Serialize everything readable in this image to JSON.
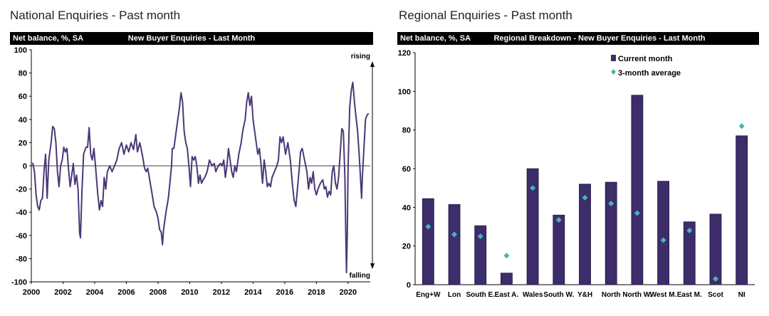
{
  "left_panel": {
    "title": "National Enquiries - Past month",
    "header_left": "Net balance, %, SA",
    "header_center": "New Buyer Enquiries - Last Month"
  },
  "right_panel": {
    "title": "Regional Enquiries - Past month",
    "header_left": "Net balance, %, SA",
    "header_center": "Regional Breakdown - New Buyer Enquiries - Last Month"
  },
  "colors": {
    "series": "#4a3877",
    "bar": "#3d2d6b",
    "marker": "#4ab3b3",
    "zero_line": "#000000"
  },
  "chart_data": [
    {
      "type": "line",
      "title": "New Buyer Enquiries - Last Month",
      "ylabel": "Net balance, %, SA",
      "ylim": [
        -100,
        100
      ],
      "xlim": [
        2000,
        2021.4
      ],
      "yticks": [
        "100",
        "80",
        "60",
        "40",
        "20",
        "0",
        "-20",
        "-40",
        "-60",
        "-80",
        "-100"
      ],
      "xticks": [
        "2000",
        "2002",
        "2004",
        "2006",
        "2008",
        "2010",
        "2012",
        "2014",
        "2016",
        "2018",
        "2020"
      ],
      "annotations": {
        "top": "rising",
        "bottom": "falling"
      },
      "points": [
        [
          2000.0,
          2
        ],
        [
          2000.1,
          2
        ],
        [
          2000.2,
          -5
        ],
        [
          2000.3,
          -25
        ],
        [
          2000.4,
          -35
        ],
        [
          2000.5,
          -38
        ],
        [
          2000.6,
          -30
        ],
        [
          2000.7,
          -28
        ],
        [
          2000.8,
          -5
        ],
        [
          2000.9,
          10
        ],
        [
          2001.0,
          -28
        ],
        [
          2001.1,
          5
        ],
        [
          2001.25,
          20
        ],
        [
          2001.35,
          34
        ],
        [
          2001.45,
          32
        ],
        [
          2001.55,
          20
        ],
        [
          2001.65,
          -5
        ],
        [
          2001.75,
          -18
        ],
        [
          2001.85,
          0
        ],
        [
          2001.95,
          5
        ],
        [
          2002.05,
          16
        ],
        [
          2002.15,
          12
        ],
        [
          2002.25,
          15
        ],
        [
          2002.35,
          -3
        ],
        [
          2002.45,
          -18
        ],
        [
          2002.55,
          -8
        ],
        [
          2002.65,
          2
        ],
        [
          2002.75,
          -16
        ],
        [
          2002.85,
          -8
        ],
        [
          2002.95,
          -20
        ],
        [
          2003.05,
          -58
        ],
        [
          2003.1,
          -62
        ],
        [
          2003.2,
          -20
        ],
        [
          2003.3,
          10
        ],
        [
          2003.45,
          16
        ],
        [
          2003.55,
          16
        ],
        [
          2003.65,
          33
        ],
        [
          2003.75,
          10
        ],
        [
          2003.85,
          5
        ],
        [
          2003.95,
          15
        ],
        [
          2004.05,
          0
        ],
        [
          2004.2,
          -25
        ],
        [
          2004.3,
          -38
        ],
        [
          2004.4,
          -30
        ],
        [
          2004.5,
          -35
        ],
        [
          2004.6,
          -10
        ],
        [
          2004.7,
          -20
        ],
        [
          2004.8,
          -5
        ],
        [
          2004.95,
          0
        ],
        [
          2005.1,
          -5
        ],
        [
          2005.25,
          0
        ],
        [
          2005.4,
          5
        ],
        [
          2005.55,
          15
        ],
        [
          2005.7,
          20
        ],
        [
          2005.85,
          10
        ],
        [
          2006.0,
          18
        ],
        [
          2006.15,
          12
        ],
        [
          2006.3,
          20
        ],
        [
          2006.45,
          14
        ],
        [
          2006.6,
          27
        ],
        [
          2006.7,
          12
        ],
        [
          2006.85,
          20
        ],
        [
          2007.0,
          10
        ],
        [
          2007.15,
          -2
        ],
        [
          2007.25,
          -5
        ],
        [
          2007.35,
          -2
        ],
        [
          2007.45,
          -10
        ],
        [
          2007.6,
          -22
        ],
        [
          2007.75,
          -35
        ],
        [
          2007.9,
          -40
        ],
        [
          2008.0,
          -45
        ],
        [
          2008.1,
          -55
        ],
        [
          2008.2,
          -57
        ],
        [
          2008.28,
          -68
        ],
        [
          2008.35,
          -55
        ],
        [
          2008.5,
          -40
        ],
        [
          2008.65,
          -28
        ],
        [
          2008.75,
          -15
        ],
        [
          2008.85,
          0
        ],
        [
          2008.9,
          15
        ],
        [
          2009.0,
          15
        ],
        [
          2009.1,
          25
        ],
        [
          2009.25,
          40
        ],
        [
          2009.35,
          50
        ],
        [
          2009.45,
          63
        ],
        [
          2009.55,
          55
        ],
        [
          2009.65,
          30
        ],
        [
          2009.75,
          20
        ],
        [
          2009.85,
          15
        ],
        [
          2009.95,
          0
        ],
        [
          2010.05,
          -18
        ],
        [
          2010.15,
          8
        ],
        [
          2010.25,
          5
        ],
        [
          2010.35,
          8
        ],
        [
          2010.45,
          0
        ],
        [
          2010.55,
          -15
        ],
        [
          2010.65,
          -8
        ],
        [
          2010.75,
          -15
        ],
        [
          2010.85,
          -12
        ],
        [
          2010.95,
          -10
        ],
        [
          2011.1,
          -5
        ],
        [
          2011.25,
          5
        ],
        [
          2011.4,
          0
        ],
        [
          2011.55,
          2
        ],
        [
          2011.65,
          -5
        ],
        [
          2011.8,
          0
        ],
        [
          2011.95,
          2
        ],
        [
          2012.05,
          0
        ],
        [
          2012.15,
          5
        ],
        [
          2012.25,
          -10
        ],
        [
          2012.35,
          0
        ],
        [
          2012.45,
          15
        ],
        [
          2012.55,
          5
        ],
        [
          2012.65,
          -5
        ],
        [
          2012.75,
          -10
        ],
        [
          2012.85,
          0
        ],
        [
          2012.95,
          -5
        ],
        [
          2013.1,
          10
        ],
        [
          2013.25,
          20
        ],
        [
          2013.35,
          30
        ],
        [
          2013.5,
          40
        ],
        [
          2013.6,
          55
        ],
        [
          2013.7,
          63
        ],
        [
          2013.8,
          52
        ],
        [
          2013.9,
          60
        ],
        [
          2014.0,
          40
        ],
        [
          2014.15,
          25
        ],
        [
          2014.3,
          10
        ],
        [
          2014.4,
          15
        ],
        [
          2014.5,
          2
        ],
        [
          2014.6,
          -15
        ],
        [
          2014.7,
          5
        ],
        [
          2014.8,
          -5
        ],
        [
          2014.9,
          -18
        ],
        [
          2015.0,
          -15
        ],
        [
          2015.1,
          -18
        ],
        [
          2015.2,
          -10
        ],
        [
          2015.35,
          -5
        ],
        [
          2015.5,
          0
        ],
        [
          2015.6,
          5
        ],
        [
          2015.7,
          25
        ],
        [
          2015.8,
          20
        ],
        [
          2015.9,
          25
        ],
        [
          2016.05,
          10
        ],
        [
          2016.2,
          20
        ],
        [
          2016.35,
          5
        ],
        [
          2016.5,
          -18
        ],
        [
          2016.6,
          -30
        ],
        [
          2016.7,
          -35
        ],
        [
          2016.8,
          -20
        ],
        [
          2016.9,
          -5
        ],
        [
          2017.0,
          12
        ],
        [
          2017.1,
          15
        ],
        [
          2017.25,
          5
        ],
        [
          2017.4,
          -5
        ],
        [
          2017.5,
          -20
        ],
        [
          2017.6,
          -10
        ],
        [
          2017.7,
          -15
        ],
        [
          2017.8,
          -5
        ],
        [
          2017.9,
          -20
        ],
        [
          2018.0,
          -25
        ],
        [
          2018.1,
          -20
        ],
        [
          2018.25,
          -15
        ],
        [
          2018.4,
          -12
        ],
        [
          2018.5,
          -20
        ],
        [
          2018.6,
          -18
        ],
        [
          2018.7,
          -27
        ],
        [
          2018.8,
          -22
        ],
        [
          2018.9,
          -25
        ],
        [
          2019.0,
          -5
        ],
        [
          2019.1,
          0
        ],
        [
          2019.2,
          -15
        ],
        [
          2019.3,
          -20
        ],
        [
          2019.4,
          -10
        ],
        [
          2019.5,
          10
        ],
        [
          2019.6,
          32
        ],
        [
          2019.7,
          30
        ],
        [
          2019.8,
          -10
        ],
        [
          2019.85,
          -55
        ],
        [
          2019.9,
          -92
        ],
        [
          2019.95,
          -60
        ],
        [
          2020.0,
          0
        ],
        [
          2020.1,
          50
        ],
        [
          2020.2,
          65
        ],
        [
          2020.3,
          72
        ],
        [
          2020.4,
          55
        ],
        [
          2020.5,
          42
        ],
        [
          2020.6,
          30
        ],
        [
          2020.7,
          10
        ],
        [
          2020.8,
          -15
        ],
        [
          2020.85,
          -28
        ],
        [
          2020.9,
          -10
        ],
        [
          2021.0,
          15
        ],
        [
          2021.1,
          40
        ],
        [
          2021.2,
          44
        ],
        [
          2021.3,
          45
        ]
      ]
    },
    {
      "type": "bar",
      "title": "Regional Breakdown - New Buyer Enquiries - Last Month",
      "ylabel": "Net balance, %, SA",
      "ylim": [
        0,
        120
      ],
      "yticks": [
        "120",
        "100",
        "80",
        "60",
        "40",
        "20",
        "0"
      ],
      "categories": [
        "Eng+W",
        "Lon",
        "South E.",
        "East A.",
        "Wales",
        "South W.",
        "Y&H",
        "North",
        "North W.",
        "West M.",
        "East M.",
        "Scot",
        "NI"
      ],
      "series": [
        {
          "name": "Current month",
          "values": [
            44.5,
            41.5,
            30.5,
            6,
            60,
            36,
            52,
            53,
            98,
            53.5,
            32.5,
            36.5,
            77
          ]
        },
        {
          "name": "3-month average",
          "values": [
            30,
            26,
            25,
            15,
            50,
            33.5,
            45,
            42,
            37,
            23,
            28,
            3,
            82
          ]
        }
      ],
      "legend_position": "top-center"
    }
  ]
}
